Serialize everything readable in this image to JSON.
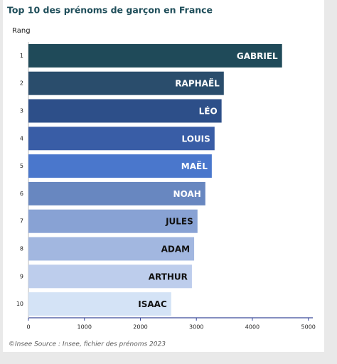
{
  "chart_data": {
    "type": "hbar",
    "title": "Top 10 des prénoms de garçon en France",
    "y_label": "Rang",
    "categories": [
      "1",
      "2",
      "3",
      "4",
      "5",
      "6",
      "7",
      "8",
      "9",
      "10"
    ],
    "labels": [
      "GABRIEL",
      "RAPHAËL",
      "LÉO",
      "LOUIS",
      "MAËL",
      "NOAH",
      "JULES",
      "ADAM",
      "ARTHUR",
      "ISAAC"
    ],
    "values": [
      4530,
      3490,
      3450,
      3325,
      3275,
      3160,
      3020,
      2960,
      2920,
      2550
    ],
    "colors": [
      "#1f4a59",
      "#2a4d6c",
      "#2d4f89",
      "#395da6",
      "#4a77cc",
      "#6887c0",
      "#88a2d4",
      "#a2b7e0",
      "#bdcdec",
      "#d4e3f6"
    ],
    "xlim": [
      0,
      5080
    ],
    "xticks": [
      0,
      1000,
      2000,
      3000,
      4000,
      5000
    ],
    "source": "©Insee Source : Insee, fichier des prénoms 2023"
  }
}
